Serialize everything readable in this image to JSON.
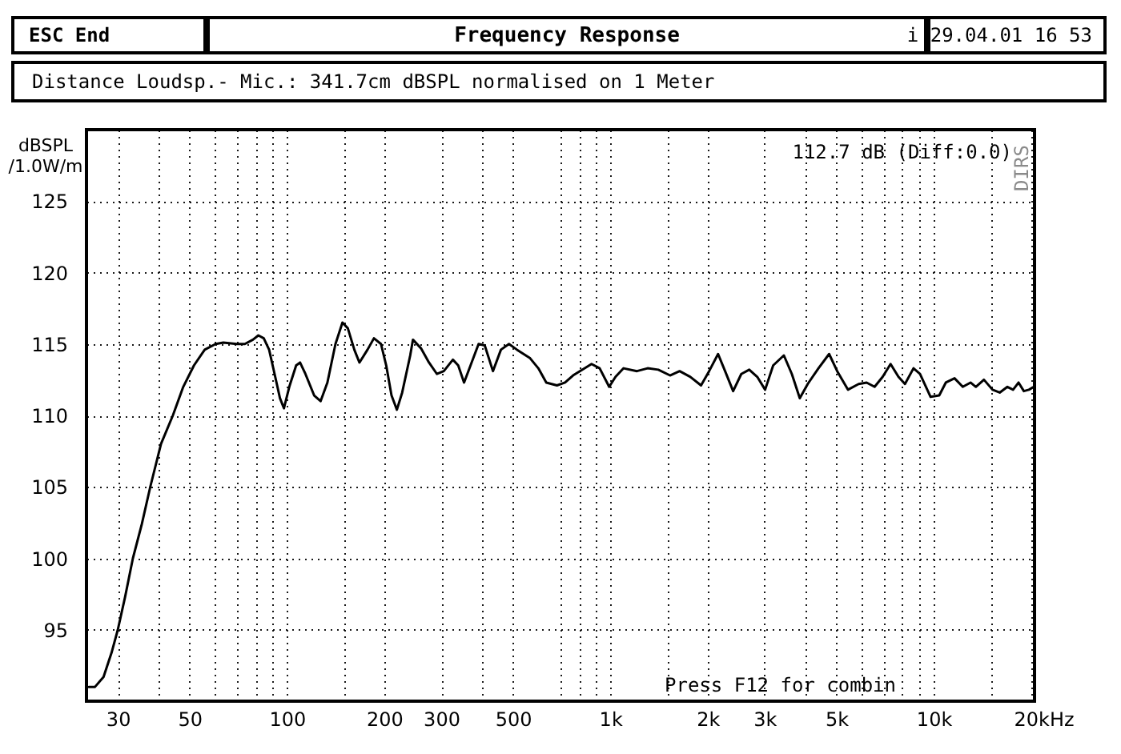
{
  "chart_data": {
    "type": "line",
    "title": "Frequency Response",
    "subtitle": "Distance Loudsp.- Mic.: 341.7cm dBSPL normalised on 1 Meter",
    "ylabel": "dBSPL /1.0W/m",
    "xlabel": "Hz",
    "annotations": [
      "ESC End",
      "i 29.04.01 16 53",
      "112.7 dB (Diff:0.0)",
      "Press F12 for combin",
      "DIRS"
    ],
    "log": "x",
    "grid": true,
    "xlim": [
      24,
      20500
    ],
    "ylim": [
      90,
      130
    ],
    "xticks": [
      30,
      {
        "value": 40,
        "label": null
      },
      50,
      {
        "value": 60,
        "label": null
      },
      {
        "value": 70,
        "label": null
      },
      {
        "value": 80,
        "label": null
      },
      {
        "value": 90,
        "label": null
      },
      100,
      {
        "value": 150,
        "label": null
      },
      200,
      300,
      {
        "value": 400,
        "label": null
      },
      500,
      {
        "value": 700,
        "label": null
      },
      {
        "value": 800,
        "label": null
      },
      {
        "value": 900,
        "label": null
      },
      {
        "value": 1000,
        "label": "1k"
      },
      {
        "value": 1500,
        "label": null
      },
      {
        "value": 2000,
        "label": "2k"
      },
      {
        "value": 3000,
        "label": "3k"
      },
      {
        "value": 4000,
        "label": null
      },
      {
        "value": 5000,
        "label": "5k"
      },
      {
        "value": 6000,
        "label": null
      },
      {
        "value": 7000,
        "label": null
      },
      {
        "value": 8000,
        "label": null
      },
      {
        "value": 9000,
        "label": null
      },
      {
        "value": 10000,
        "label": "10k"
      },
      {
        "value": 15000,
        "label": null
      },
      {
        "value": 20000,
        "label": "20k"
      }
    ],
    "yticks": [
      95,
      100,
      105,
      110,
      115,
      120,
      125
    ],
    "x": [
      24.4,
      25.5,
      27.1,
      28.7,
      30,
      31.6,
      33.4,
      35.6,
      37.8,
      40.8,
      44.4,
      47.8,
      51.6,
      55.7,
      60.2,
      63.6,
      70,
      74.1,
      78.5,
      81.6,
      84.8,
      88.1,
      91.6,
      95.2,
      97.9,
      101.7,
      106.8,
      109.8,
      114.1,
      121.4,
      127.1,
      133.4,
      141.3,
      148.5,
      154.3,
      161.6,
      167.6,
      177.5,
      185.8,
      195.4,
      202.8,
      210.6,
      218.8,
      227.2,
      240.6,
      245.3,
      259.7,
      275,
      291,
      305.6,
      326,
      338.6,
      353,
      369.7,
      391.5,
      409,
      433.6,
      459,
      486,
      514.5,
      565,
      599,
      634,
      684,
      724.5,
      767,
      875,
      927,
      992,
      1038,
      1099,
      1209,
      1304,
      1407,
      1530,
      1638,
      1768,
      1908,
      2021,
      2154,
      2264,
      2398,
      2541,
      2689,
      2847,
      3011,
      3189,
      3441,
      3642,
      3854,
      4078,
      4402,
      4749,
      5030,
      5430,
      5860,
      6203,
      6565,
      6953,
      7356,
      7781,
      8150,
      8660,
      9070,
      9780,
      10400,
      10900,
      11600,
      12300,
      13000,
      13500,
      14300,
      15200,
      16000,
      16900,
      17600,
      18300,
      19000,
      19700,
      20400
    ],
    "series": [
      {
        "color": "#000000",
        "values": [
          91.0,
          91.0,
          91.7,
          93.4,
          95.0,
          97.3,
          100.0,
          102.4,
          105.0,
          108.0,
          110.0,
          112.0,
          113.5,
          114.6,
          115.0,
          115.1,
          115.0,
          115.0,
          115.3,
          115.6,
          115.4,
          114.6,
          112.9,
          111.2,
          110.5,
          112.0,
          113.5,
          113.7,
          112.9,
          111.4,
          111.0,
          112.3,
          115.0,
          116.5,
          116.1,
          114.6,
          113.7,
          114.6,
          115.4,
          115.0,
          113.5,
          111.4,
          110.4,
          111.6,
          114.2,
          115.3,
          114.7,
          113.7,
          112.9,
          113.1,
          113.9,
          113.5,
          112.3,
          113.5,
          115.0,
          114.9,
          113.1,
          114.6,
          115.0,
          114.6,
          114.0,
          113.3,
          112.3,
          112.1,
          112.3,
          112.8,
          113.6,
          113.3,
          112.0,
          112.7,
          113.3,
          113.1,
          113.3,
          113.2,
          112.8,
          113.1,
          112.7,
          112.1,
          113.1,
          114.3,
          113.1,
          111.7,
          112.9,
          113.2,
          112.7,
          111.8,
          113.5,
          114.2,
          112.9,
          111.2,
          112.2,
          113.3,
          114.3,
          113.1,
          111.8,
          112.2,
          112.3,
          112.0,
          112.7,
          113.6,
          112.7,
          112.2,
          113.3,
          112.9,
          111.3,
          111.4,
          112.3,
          112.6,
          112.0,
          112.3,
          112.0,
          112.5,
          111.8,
          111.6,
          112.0,
          111.8,
          112.3,
          111.7,
          111.8,
          112.0
        ]
      }
    ]
  }
}
